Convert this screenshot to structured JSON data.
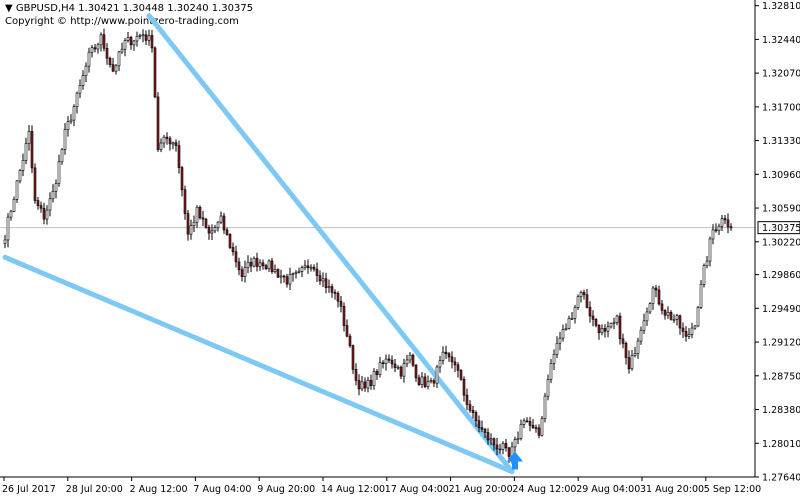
{
  "header": {
    "menu_glyph": "▼",
    "symbol": "GBPUSD,H4",
    "ohlc": "1.30421 1.30448 1.30240 1.30375",
    "copyright": "Copyright © http://www.pointzero-trading.com"
  },
  "colors": {
    "background": "#ffffff",
    "bull_body": "#ffffff",
    "bear_body": "#8b1a1a",
    "wick": "#000000",
    "wedge": "#7ec8f4",
    "arrow": "#1e90ff",
    "current_price_line": "#c0c0c0",
    "price_label_bg": "#ffffff"
  },
  "icons": {
    "breakout_marker": "up-arrow-icon"
  },
  "chart_data": {
    "type": "candlestick",
    "symbol": "GBPUSD",
    "timeframe": "H4",
    "ylim": [
      1.2764,
      1.3285
    ],
    "y_ticks": [
      "1.32810",
      "1.32440",
      "1.32070",
      "1.31700",
      "1.31330",
      "1.30960",
      "1.30590",
      "1.30220",
      "1.29860",
      "1.29490",
      "1.29120",
      "1.28750",
      "1.28380",
      "1.28010",
      "1.27640"
    ],
    "current_price": "1.30375",
    "x_labels": [
      "26 Jul 2017",
      "28 Jul 20:00",
      "2 Aug 12:00",
      "7 Aug 04:00",
      "9 Aug 20:00",
      "14 Aug 12:00",
      "17 Aug 04:00",
      "21 Aug 20:00",
      "24 Aug 12:00",
      "29 Aug 04:00",
      "31 Aug 20:00",
      "5 Sep 12:00"
    ],
    "bar_count": 243,
    "waypoints": [
      [
        0,
        1.303
      ],
      [
        5,
        1.31
      ],
      [
        8,
        1.314
      ],
      [
        10,
        1.3065
      ],
      [
        13,
        1.305
      ],
      [
        16,
        1.3075
      ],
      [
        20,
        1.314
      ],
      [
        24,
        1.318
      ],
      [
        28,
        1.3225
      ],
      [
        32,
        1.3245
      ],
      [
        36,
        1.321
      ],
      [
        40,
        1.324
      ],
      [
        46,
        1.325
      ],
      [
        49,
        1.324
      ],
      [
        51,
        1.3125
      ],
      [
        54,
        1.3135
      ],
      [
        57,
        1.313
      ],
      [
        59,
        1.308
      ],
      [
        61,
        1.303
      ],
      [
        64,
        1.3055
      ],
      [
        68,
        1.303
      ],
      [
        72,
        1.3045
      ],
      [
        76,
        1.301
      ],
      [
        79,
        1.2985
      ],
      [
        82,
        1.3
      ],
      [
        86,
        1.3
      ],
      [
        90,
        1.299
      ],
      [
        94,
        1.298
      ],
      [
        98,
        1.2985
      ],
      [
        102,
        1.3
      ],
      [
        105,
        1.2985
      ],
      [
        108,
        1.297
      ],
      [
        111,
        1.296
      ],
      [
        114,
        1.292
      ],
      [
        117,
        1.287
      ],
      [
        120,
        1.286
      ],
      [
        124,
        1.288
      ],
      [
        128,
        1.2895
      ],
      [
        132,
        1.288
      ],
      [
        135,
        1.2895
      ],
      [
        138,
        1.287
      ],
      [
        142,
        1.2865
      ],
      [
        146,
        1.2895
      ],
      [
        150,
        1.289
      ],
      [
        153,
        1.2855
      ],
      [
        156,
        1.283
      ],
      [
        160,
        1.281
      ],
      [
        163,
        1.28
      ],
      [
        166,
        1.2795
      ],
      [
        168,
        1.2785
      ],
      [
        170,
        1.28
      ],
      [
        173,
        1.283
      ],
      [
        176,
        1.2815
      ],
      [
        178,
        1.281
      ],
      [
        181,
        1.2875
      ],
      [
        184,
        1.291
      ],
      [
        188,
        1.2935
      ],
      [
        192,
        1.297
      ],
      [
        196,
        1.2935
      ],
      [
        200,
        1.292
      ],
      [
        204,
        1.2935
      ],
      [
        208,
        1.288
      ],
      [
        212,
        1.293
      ],
      [
        216,
        1.297
      ],
      [
        220,
        1.2945
      ],
      [
        224,
        1.2935
      ],
      [
        227,
        1.2915
      ],
      [
        230,
        1.2935
      ],
      [
        233,
        1.299
      ],
      [
        236,
        1.3035
      ],
      [
        240,
        1.305
      ],
      [
        242,
        1.3037
      ]
    ],
    "wedge_upper": {
      "from": [
        48,
        1.327
      ],
      "to": [
        169,
        1.277
      ]
    },
    "wedge_lower": {
      "from": [
        0,
        1.3005
      ],
      "to": [
        169,
        1.277
      ]
    },
    "breakout_arrow_index": 170
  }
}
